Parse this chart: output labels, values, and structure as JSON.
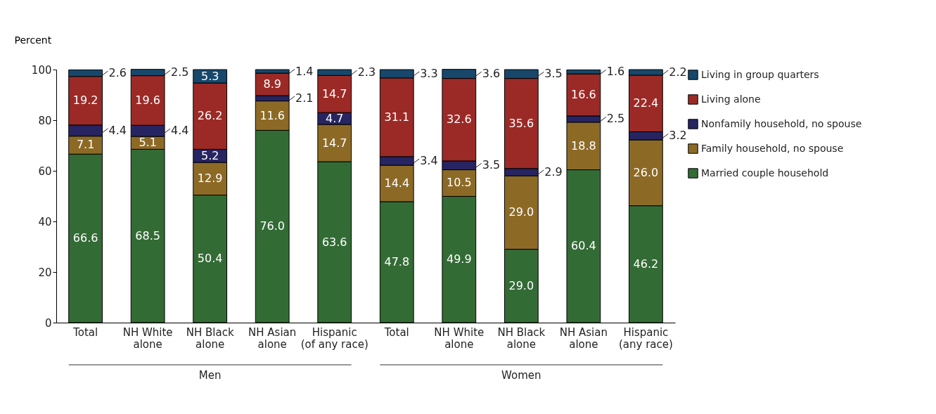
{
  "chart_data": {
    "type": "bar",
    "stacked": true,
    "ylabel": "Percent",
    "categories": [
      "Total",
      "NH White alone",
      "NH Black alone",
      "NH Asian alone",
      "Hispanic (of any race)",
      "Total",
      "NH White alone",
      "NH Black alone",
      "NH Asian alone",
      "Hispanic (any race)"
    ],
    "series": [
      {
        "name": "Married couple household",
        "color": "#336b35",
        "values": [
          66.6,
          68.5,
          50.4,
          76.0,
          63.6,
          47.8,
          49.9,
          29.0,
          60.4,
          46.2
        ],
        "value_labels": [
          "66.6",
          "68.5",
          "50.4",
          "76.0",
          "63.6",
          "47.8",
          "49.9",
          "29.0",
          "60.4",
          "46.2"
        ]
      },
      {
        "name": "Family household, no spouse",
        "color": "#8c6a26",
        "values": [
          7.1,
          5.1,
          12.9,
          11.6,
          14.7,
          14.4,
          10.5,
          29.0,
          18.8,
          26.0
        ],
        "value_labels": [
          "7.1",
          "5.1",
          "12.9",
          "11.6",
          "14.7",
          "14.4",
          "10.5",
          "29.0",
          "18.8",
          "26.0"
        ]
      },
      {
        "name": "Nonfamily household, no spouse",
        "color": "#272462",
        "values": [
          4.4,
          4.4,
          5.2,
          2.1,
          4.7,
          3.4,
          3.5,
          2.9,
          2.5,
          3.2
        ],
        "value_labels": [
          "4.4",
          "4.4",
          "5.2",
          "2.1",
          "4.7",
          "3.4",
          "3.5",
          "2.9",
          "2.5",
          "3.2"
        ]
      },
      {
        "name": "Living alone",
        "color": "#9b2a26",
        "values": [
          19.2,
          19.6,
          26.2,
          8.9,
          14.7,
          31.1,
          32.6,
          35.6,
          16.6,
          22.4
        ],
        "value_labels": [
          "19.2",
          "19.6",
          "26.2",
          "8.9",
          "14.7",
          "31.1",
          "32.6",
          "35.6",
          "16.6",
          "22.4"
        ]
      },
      {
        "name": "Living in group quarters",
        "color": "#17486b",
        "values": [
          2.6,
          2.5,
          5.3,
          1.4,
          2.3,
          3.3,
          3.6,
          3.5,
          1.6,
          2.2
        ],
        "value_labels": [
          "2.6",
          "2.5",
          "5.3",
          "1.4",
          "2.3",
          "3.3",
          "3.6",
          "3.5",
          "1.6",
          "2.2"
        ]
      }
    ],
    "ylim": [
      0,
      100
    ],
    "yticks": [
      0,
      20,
      40,
      60,
      80,
      100
    ],
    "grid": false,
    "legend": "right",
    "annotations": [
      "Men",
      "Women"
    ]
  }
}
